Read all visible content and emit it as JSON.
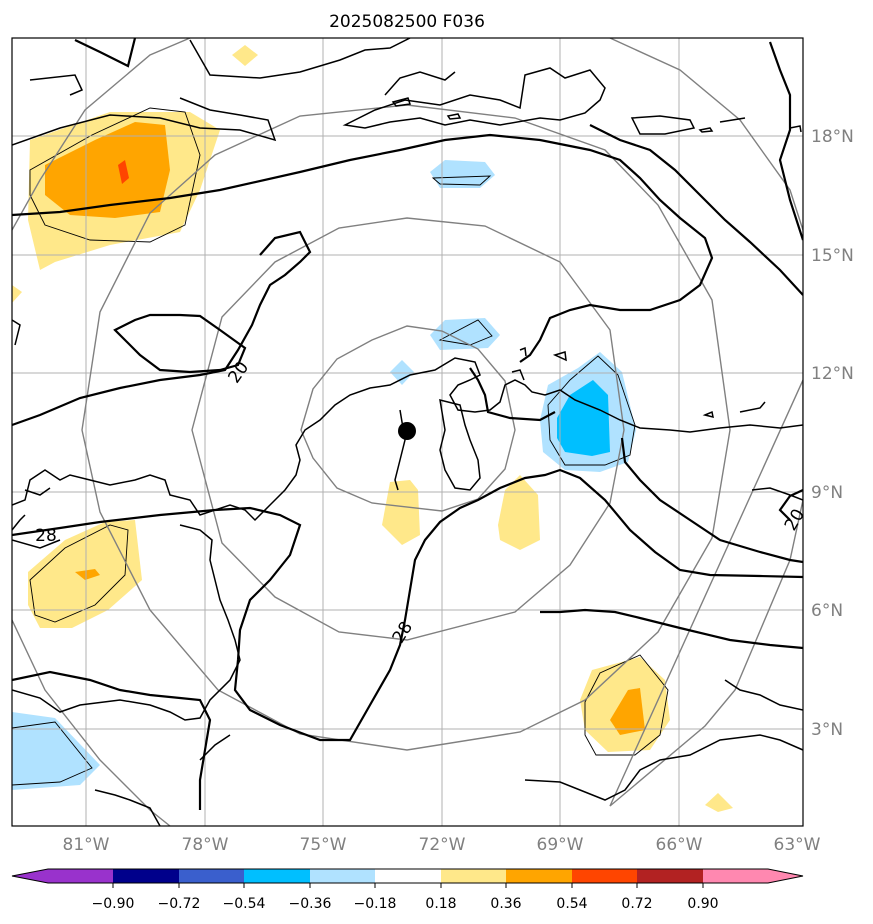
{
  "title": "2025082500 F036",
  "lat_labels": [
    "18°N",
    "15°N",
    "12°N",
    "9°N",
    "6°N",
    "3°N"
  ],
  "lon_labels": [
    "81°W",
    "78°W",
    "75°W",
    "72°W",
    "69°W",
    "66°W",
    "63°W"
  ],
  "colorbar": {
    "tick_labels": [
      "−0.90",
      "−0.72",
      "−0.54",
      "−0.36",
      "−0.18",
      "0.18",
      "0.36",
      "0.54",
      "0.72",
      "0.90"
    ],
    "colors": [
      "#9932cc",
      "#00008b",
      "#3a5fcd",
      "#00bfff",
      "#b0e2ff",
      "#ffffff",
      "#ffe88a",
      "#ffa500",
      "#ff4500",
      "#b22222",
      "#ff88b0"
    ]
  },
  "contour_labels": [
    "20",
    "28",
    "28",
    "20"
  ],
  "storm_center": {
    "lat": 10.5,
    "lon": -72.9
  },
  "colors": {
    "coast": "#000000",
    "grid": "#b0b0b0",
    "range_rings": "#808080"
  }
}
